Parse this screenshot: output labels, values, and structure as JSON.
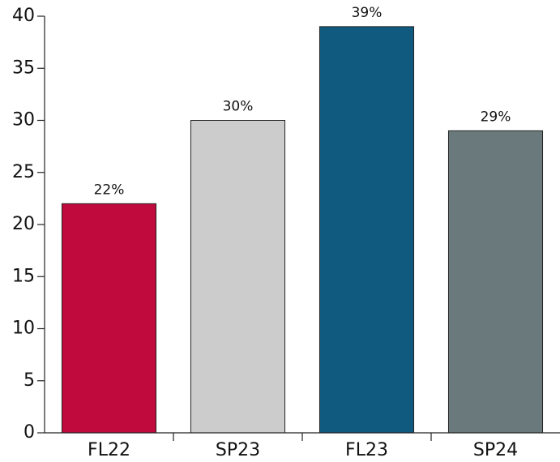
{
  "chart_data": {
    "type": "bar",
    "categories": [
      "FL22",
      "SP23",
      "FL23",
      "SP24"
    ],
    "values": [
      22,
      30,
      39,
      29
    ],
    "value_labels": [
      "22%",
      "30%",
      "39%",
      "29%"
    ],
    "colors": [
      "#c0093c",
      "#cccccc",
      "#105a80",
      "#6a7a7c"
    ],
    "ylim": [
      0,
      40
    ],
    "yticks": [
      0,
      5,
      10,
      15,
      20,
      25,
      30,
      35,
      40
    ],
    "grid": false
  }
}
